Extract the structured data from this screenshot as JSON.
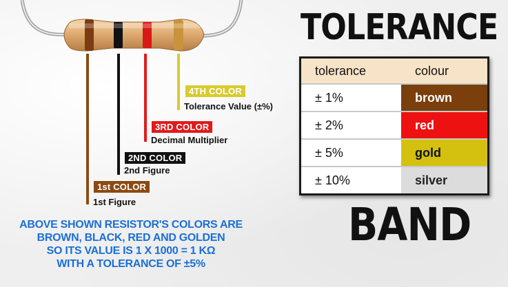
{
  "bands": [
    {
      "tag": "1st COLOR",
      "description": "1st Figure",
      "color": "#8b4a12"
    },
    {
      "tag": "2ND COLOR",
      "description": "2nd Figure",
      "color": "#111111"
    },
    {
      "tag": "3RD COLOR",
      "description": "Decimal Multiplier",
      "color": "#e11b1b"
    },
    {
      "tag": "4TH COLOR",
      "description": "Tolerance Value (±%)",
      "color": "#d8cb2f"
    }
  ],
  "caption": {
    "lines": [
      "ABOVE SHOWN RESISTOR'S COLORS ARE",
      "BROWN, BLACK, RED AND GOLDEN",
      "SO ITS VALUE IS 1 X 1000 = 1 KΩ",
      "WITH A TOLERANCE OF ±5%"
    ],
    "color": "#1a6fd6"
  },
  "title": {
    "top": "TOLERANCE",
    "bottom": "BAND"
  },
  "table": {
    "headers": [
      "tolerance",
      "colour"
    ],
    "rows": [
      {
        "tolerance": "± 1%",
        "colour": "brown",
        "bg": "#7a3f0c",
        "fg": "#ffffff"
      },
      {
        "tolerance": "± 2%",
        "colour": "red",
        "bg": "#ee1111",
        "fg": "#ffffff"
      },
      {
        "tolerance": "± 5%",
        "colour": "gold",
        "bg": "#d4c10f",
        "fg": "#111111"
      },
      {
        "tolerance": "± 10%",
        "colour": "silver",
        "bg": "#dcdcdc",
        "fg": "#222222"
      }
    ],
    "header_bg": "#f7e4c8"
  }
}
